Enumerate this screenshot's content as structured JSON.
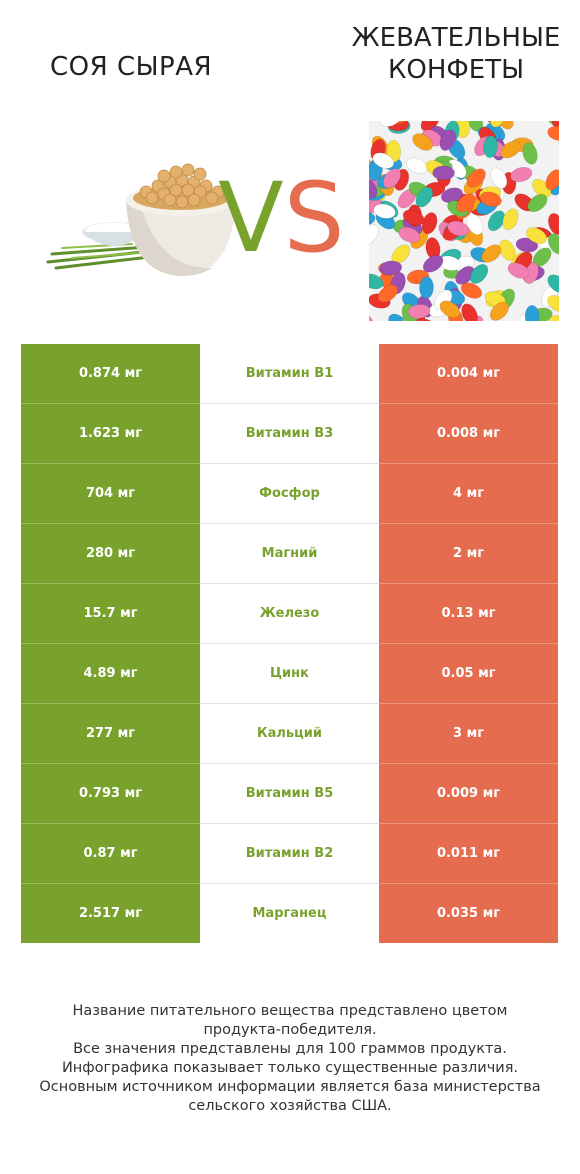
{
  "header": {
    "left_title": "СОЯ СЫРАЯ",
    "right_title_line1": "ЖЕВАТЕЛЬНЫЕ",
    "right_title_line2": "КОНФЕТЫ",
    "vs_v": "V",
    "vs_s": "S"
  },
  "colors": {
    "winner_left": "#79a22d",
    "winner_right": "#e56c4f"
  },
  "chart_data": {
    "type": "table",
    "columns": [
      "СОЯ СЫРАЯ",
      "",
      "ЖЕВАТЕЛЬНЫЕ КОНФЕТЫ"
    ],
    "rows": [
      {
        "nutrient": "Витамин B1",
        "left": "0.874 мг",
        "right": "0.004 мг",
        "winner": "left"
      },
      {
        "nutrient": "Витамин B3",
        "left": "1.623 мг",
        "right": "0.008 мг",
        "winner": "left"
      },
      {
        "nutrient": "Фосфор",
        "left": "704 мг",
        "right": "4 мг",
        "winner": "left"
      },
      {
        "nutrient": "Магний",
        "left": "280 мг",
        "right": "2 мг",
        "winner": "left"
      },
      {
        "nutrient": "Железо",
        "left": "15.7 мг",
        "right": "0.13 мг",
        "winner": "left"
      },
      {
        "nutrient": "Цинк",
        "left": "4.89 мг",
        "right": "0.05 мг",
        "winner": "left"
      },
      {
        "nutrient": "Кальций",
        "left": "277 мг",
        "right": "3 мг",
        "winner": "left"
      },
      {
        "nutrient": "Витамин B5",
        "left": "0.793 мг",
        "right": "0.009 мг",
        "winner": "left"
      },
      {
        "nutrient": "Витамин B2",
        "left": "0.87 мг",
        "right": "0.011 мг",
        "winner": "left"
      },
      {
        "nutrient": "Марганец",
        "left": "2.517 мг",
        "right": "0.035 мг",
        "winner": "left"
      }
    ]
  },
  "footer": {
    "line1": "Название питательного вещества представлено цветом",
    "line2": "продукта-победителя.",
    "line3": "Все значения представлены для 100 граммов продукта.",
    "line4": "Инфографика показывает только существенные различия.",
    "line5": "Основным источником информации является база министерства",
    "line6": "сельского хозяйства США."
  }
}
